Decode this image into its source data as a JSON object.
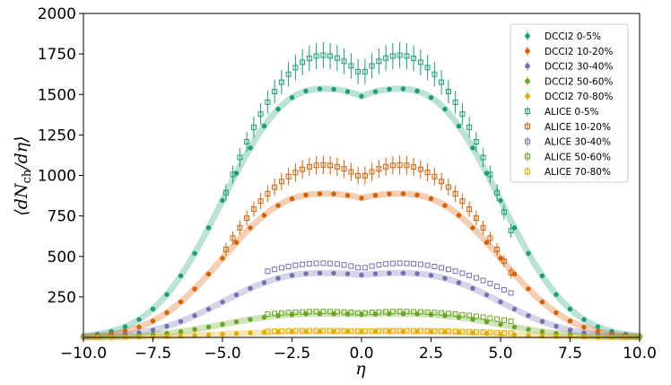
{
  "chart_data": {
    "type": "scatter",
    "title": "",
    "xlabel": "η",
    "ylabel": "⟨dN_ch/dη⟩",
    "xlim": [
      -10.0,
      10.0
    ],
    "ylim": [
      0,
      2000
    ],
    "xticks": [
      -10.0,
      -7.5,
      -5.0,
      -2.5,
      0.0,
      2.5,
      5.0,
      7.5,
      10.0
    ],
    "xtick_labels": [
      "−10.0",
      "−7.5",
      "−5.0",
      "−2.5",
      "0.0",
      "2.5",
      "5.0",
      "7.5",
      "10.0"
    ],
    "yticks": [
      250,
      500,
      750,
      1000,
      1250,
      1500,
      1750,
      2000
    ],
    "ytick_labels": [
      "250",
      "500",
      "750",
      "1000",
      "1250",
      "1500",
      "1750",
      "2000"
    ],
    "grid": false,
    "legend_position": "top-right",
    "dcci2_series": [
      {
        "name": "DCCI2 0-5%",
        "color": "#1b9e77",
        "peak": 1535,
        "center": 1490,
        "amplitude": 1
      },
      {
        "name": "DCCI2 10-20%",
        "color": "#d95f02",
        "peak": 887,
        "center": 860,
        "amplitude": 0.578
      },
      {
        "name": "DCCI2 30-40%",
        "color": "#7570b3",
        "peak": 397,
        "center": 385,
        "amplitude": 0.259
      },
      {
        "name": "DCCI2 50-60%",
        "color": "#66a61e",
        "peak": 145,
        "center": 141,
        "amplitude": 0.095
      },
      {
        "name": "DCCI2 70-80%",
        "color": "#e6ab02",
        "peak": 36,
        "center": 35,
        "amplitude": 0.024
      }
    ],
    "alice_series": [
      {
        "name": "ALICE 0-5%",
        "color": "#1b9e77",
        "x_range": [
          -4.875,
          5.375
        ],
        "peak": 1742,
        "center": 1620,
        "edge": 660,
        "rel_error": 0.035
      },
      {
        "name": "ALICE 10-20%",
        "color": "#d95f02",
        "x_range": [
          -4.875,
          5.375
        ],
        "peak": 1065,
        "center": 985,
        "edge": 400,
        "rel_error": 0.035
      },
      {
        "name": "ALICE 30-40%",
        "color": "#7570b3",
        "x_range": [
          -3.375,
          5.375
        ],
        "peak": 458,
        "center": 425,
        "edge": 275,
        "rel_error": 0
      },
      {
        "name": "ALICE 50-60%",
        "color": "#66a61e",
        "x_range": [
          -3.375,
          5.375
        ],
        "peak": 160,
        "center": 150,
        "edge": 100,
        "rel_error": 0
      },
      {
        "name": "ALICE 70-80%",
        "color": "#e6ab02",
        "x_range": [
          -3.375,
          5.375
        ],
        "peak": 42,
        "center": 39,
        "edge": 26,
        "rel_error": 0
      }
    ]
  }
}
